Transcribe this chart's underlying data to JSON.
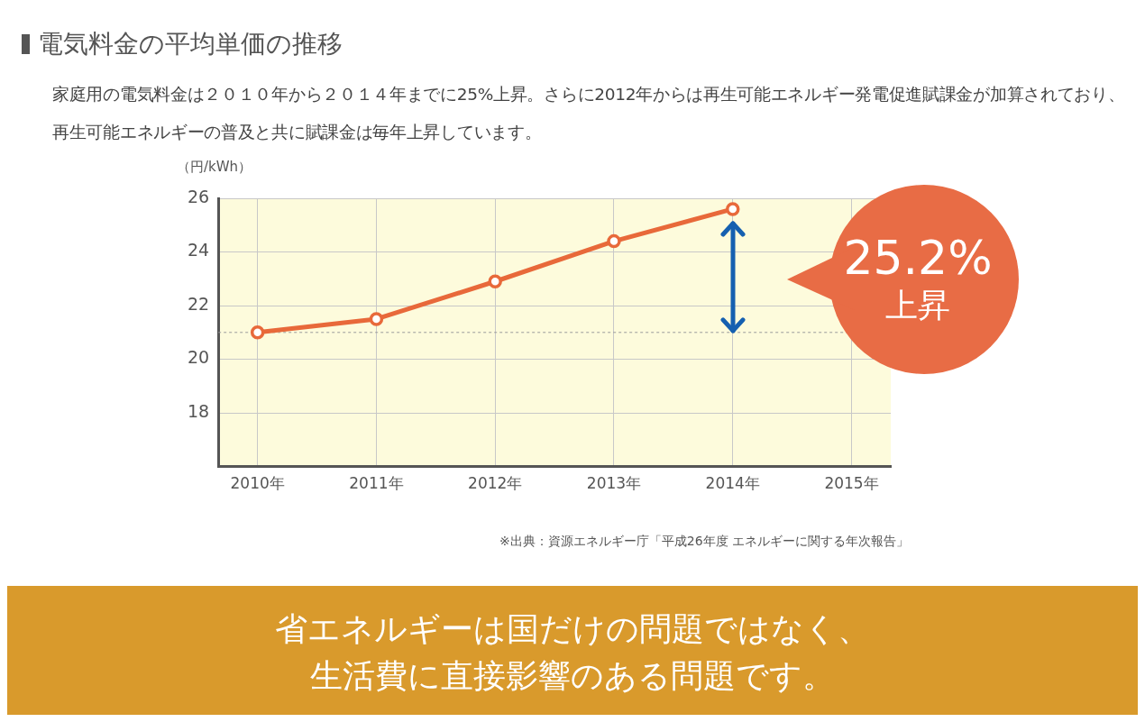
{
  "chart_data": {
    "type": "line",
    "title": "電気料金の平均単価の推移",
    "subtitle": "家庭用の電気料金は２０１０年から２０１４年までに25%上昇。さらに2012年からは再生可能エネルギー発電促進賦課金が加算されており、再生可能エネルギーの普及と共に賦課金は毎年上昇しています。",
    "ylabel": "（円/kWh）",
    "categories": [
      "2010年",
      "2011年",
      "2012年",
      "2013年",
      "2014年",
      "2015年"
    ],
    "series": [
      {
        "color": "#e8693a",
        "values": [
          21.0,
          21.5,
          22.9,
          24.4,
          25.6,
          null
        ]
      }
    ],
    "ylim": [
      16,
      26
    ],
    "yticks": [
      {
        "value": 16,
        "label": null
      },
      18,
      20,
      22,
      24,
      26
    ],
    "grid": true,
    "legend": false,
    "marker": "circle",
    "line_style": "solid",
    "ref_lines": [
      {
        "axis": "y",
        "value": 21.0,
        "color": "#9a9a9a",
        "line_style": "dotted"
      }
    ],
    "annotations": [
      "25.2%",
      "上昇",
      "※出典：資源エネルギー庁「平成26年度 エネルギーに関する年次報告」",
      "省エネルギーは国だけの問題ではなく、",
      "生活費に直接影響のある問題です。"
    ]
  }
}
